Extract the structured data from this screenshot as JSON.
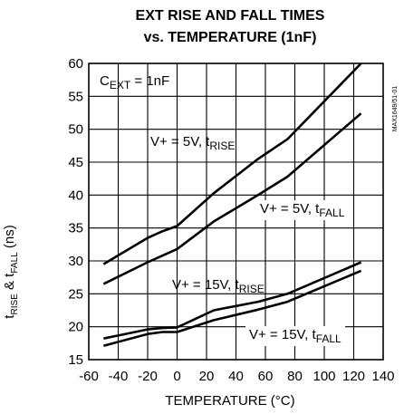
{
  "chart_data": {
    "type": "line",
    "title_line1": "EXT RISE AND FALL TIMES",
    "title_line2": "vs. TEMPERATURE (1nF)",
    "xlabel": "TEMPERATURE (°C)",
    "ylabel": {
      "t1": "t",
      "s1": "RISE",
      "mid": " & t",
      "s2": "FALL",
      "end": " (ns)"
    },
    "xlim": [
      -60,
      140
    ],
    "ylim": [
      15,
      60
    ],
    "grid": true,
    "x_ticks": [
      -60,
      -40,
      -20,
      0,
      20,
      40,
      60,
      80,
      100,
      120,
      140
    ],
    "y_ticks": [
      15,
      20,
      25,
      30,
      35,
      40,
      45,
      50,
      55,
      60
    ],
    "side_code": "MAX1649/51-01",
    "annotations": [
      {
        "name": "annotation-cext",
        "parts": [
          {
            "t": "C"
          },
          {
            "t": "EXT",
            "sub": true
          },
          {
            "t": " = 1nF"
          }
        ]
      },
      {
        "name": "annotation-5v-rise",
        "parts": [
          {
            "t": "V+ = 5V, t"
          },
          {
            "t": "RISE",
            "sub": true
          }
        ]
      },
      {
        "name": "annotation-5v-fall",
        "parts": [
          {
            "t": "V+ = 5V, t"
          },
          {
            "t": "FALL",
            "sub": true
          }
        ]
      },
      {
        "name": "annotation-15v-rise",
        "parts": [
          {
            "t": "V+ = 15V, t"
          },
          {
            "t": "RISE",
            "sub": true
          }
        ]
      },
      {
        "name": "annotation-15v-fall",
        "parts": [
          {
            "t": "V+ = 15V, t"
          },
          {
            "t": "FALL",
            "sub": true
          }
        ]
      }
    ],
    "series": [
      {
        "key": "5v-rise",
        "x": [
          -50,
          -20,
          -10,
          0,
          25,
          55,
          75,
          125
        ],
        "y": [
          29.5,
          33.5,
          34.5,
          35.3,
          40.3,
          45.5,
          48.5,
          60.0
        ]
      },
      {
        "key": "5v-fall",
        "x": [
          -50,
          -20,
          -10,
          0,
          25,
          55,
          75,
          125
        ],
        "y": [
          26.5,
          29.8,
          30.8,
          31.8,
          36.0,
          40.0,
          42.8,
          52.4
        ]
      },
      {
        "key": "15v-rise",
        "x": [
          -50,
          -20,
          -10,
          0,
          25,
          55,
          75,
          125
        ],
        "y": [
          18.2,
          19.6,
          19.8,
          19.9,
          22.5,
          23.8,
          25.0,
          29.8
        ]
      },
      {
        "key": "15v-fall",
        "x": [
          -50,
          -20,
          -10,
          0,
          25,
          55,
          75,
          125
        ],
        "y": [
          17.1,
          18.9,
          19.2,
          19.2,
          21.0,
          22.6,
          23.8,
          28.5
        ]
      }
    ]
  }
}
